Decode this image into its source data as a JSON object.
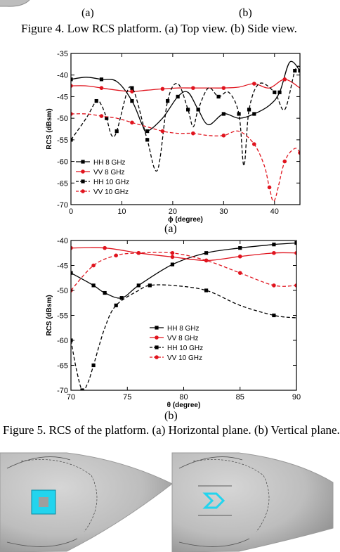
{
  "fig4": {
    "label_a": "(a)",
    "label_b": "(b)",
    "caption": "Figure 4. Low RCS platform. (a) Top view. (b) Side view."
  },
  "fig5": {
    "caption": "Figure 5. RCS of the platform. (a) Horizontal plane. (b) Vertical plane.",
    "label_a": "(a)",
    "label_b": "(b)"
  },
  "colors": {
    "hh": "#000000",
    "vv": "#e0141e",
    "cyan": "#22d4ee",
    "grey": "#b7b7b7"
  },
  "chart_data": [
    {
      "type": "line",
      "xlabel": "ϕ (degree)",
      "ylabel": "RCS (dBsm)",
      "xlim": [
        0,
        45
      ],
      "ylim": [
        -70,
        -35
      ],
      "xticks": [
        0,
        10,
        20,
        30,
        40
      ],
      "yticks": [
        -35,
        -40,
        -45,
        -50,
        -55,
        -60,
        -65,
        -70
      ],
      "legend_position": "bottom-left",
      "series": [
        {
          "name": "HH 8 GHz",
          "color": "#000000",
          "dash": false,
          "marker": "square",
          "x": [
            0,
            3,
            6,
            9,
            12,
            14,
            15,
            18,
            21,
            23,
            25,
            27,
            30,
            33,
            36,
            39,
            41,
            43,
            45
          ],
          "y": [
            -41,
            -40.5,
            -41,
            -41.5,
            -46,
            -51.5,
            -53,
            -50,
            -45,
            -44,
            -48,
            -51.5,
            -49,
            -50,
            -49,
            -47,
            -44,
            -37,
            -39
          ]
        },
        {
          "name": "VV 8 GHz",
          "color": "#e0141e",
          "dash": false,
          "marker": "circle",
          "x": [
            0,
            3,
            6,
            9,
            12,
            15,
            18,
            21,
            24,
            27,
            30,
            33,
            36,
            39,
            42,
            45
          ],
          "y": [
            -42.5,
            -42.5,
            -43,
            -43.5,
            -43.8,
            -43.5,
            -43.2,
            -43,
            -43,
            -43,
            -43,
            -42.8,
            -42,
            -43,
            -41,
            -43
          ]
        },
        {
          "name": "HH 10 GHz",
          "color": "#000000",
          "dash": true,
          "marker": "square",
          "x": [
            0,
            3,
            5,
            6,
            7,
            8,
            9,
            11,
            12,
            13,
            15,
            17,
            19,
            21,
            23,
            24,
            25,
            27,
            29,
            31,
            33,
            34,
            35,
            37,
            40,
            42,
            44,
            45
          ],
          "y": [
            -55,
            -50,
            -46,
            -47,
            -50,
            -54,
            -53,
            -44,
            -43,
            -46,
            -55,
            -62,
            -46,
            -42,
            -48,
            -52,
            -48,
            -43,
            -45,
            -44,
            -49,
            -61,
            -48,
            -42,
            -44,
            -48,
            -39,
            -38
          ]
        },
        {
          "name": "VV 10 GHz",
          "color": "#e0141e",
          "dash": true,
          "marker": "circle",
          "x": [
            0,
            3,
            6,
            9,
            12,
            15,
            18,
            21,
            24,
            27,
            30,
            33,
            36,
            38,
            39,
            40,
            42,
            44,
            45
          ],
          "y": [
            -49,
            -49,
            -49.5,
            -50,
            -51,
            -52,
            -53,
            -53.5,
            -53.5,
            -54,
            -54,
            -53,
            -56,
            -61,
            -66,
            -69,
            -60,
            -57,
            -58
          ]
        }
      ]
    },
    {
      "type": "line",
      "xlabel": "θ (degree)",
      "ylabel": "RCS (dBsm)",
      "xlim": [
        70,
        90
      ],
      "ylim": [
        -70,
        -40
      ],
      "xticks": [
        70,
        75,
        80,
        85,
        90
      ],
      "yticks": [
        -40,
        -45,
        -50,
        -55,
        -60,
        -65,
        -70
      ],
      "legend_position": "center-right",
      "series": [
        {
          "name": "HH 8 GHz",
          "color": "#000000",
          "dash": false,
          "marker": "square",
          "x": [
            70,
            72,
            73,
            74.5,
            76,
            79,
            82,
            85,
            88,
            90
          ],
          "y": [
            -46.5,
            -49,
            -50.5,
            -51.5,
            -49,
            -44.8,
            -42.5,
            -41.5,
            -40.8,
            -40.5
          ]
        },
        {
          "name": "VV 8 GHz",
          "color": "#e0141e",
          "dash": false,
          "marker": "circle",
          "x": [
            70,
            73,
            76,
            79,
            82,
            85,
            88,
            90
          ],
          "y": [
            -41.5,
            -41.5,
            -42.5,
            -43.3,
            -44,
            -43.2,
            -42.5,
            -42.5
          ]
        },
        {
          "name": "HH 10 GHz",
          "color": "#000000",
          "dash": true,
          "marker": "square",
          "x": [
            70,
            70.5,
            71,
            71.5,
            72,
            73,
            74,
            76,
            77,
            79,
            82,
            85,
            88,
            90
          ],
          "y": [
            -60,
            -66,
            -70,
            -68.5,
            -65,
            -57.5,
            -53,
            -50,
            -49,
            -49,
            -50,
            -53,
            -55,
            -55.5
          ]
        },
        {
          "name": "VV 10 GHz",
          "color": "#e0141e",
          "dash": true,
          "marker": "circle",
          "x": [
            70,
            72,
            74,
            76,
            79,
            82,
            85,
            88,
            90
          ],
          "y": [
            -50,
            -45,
            -43,
            -42.5,
            -42.5,
            -44,
            -46.5,
            -49,
            -49
          ]
        }
      ]
    }
  ]
}
